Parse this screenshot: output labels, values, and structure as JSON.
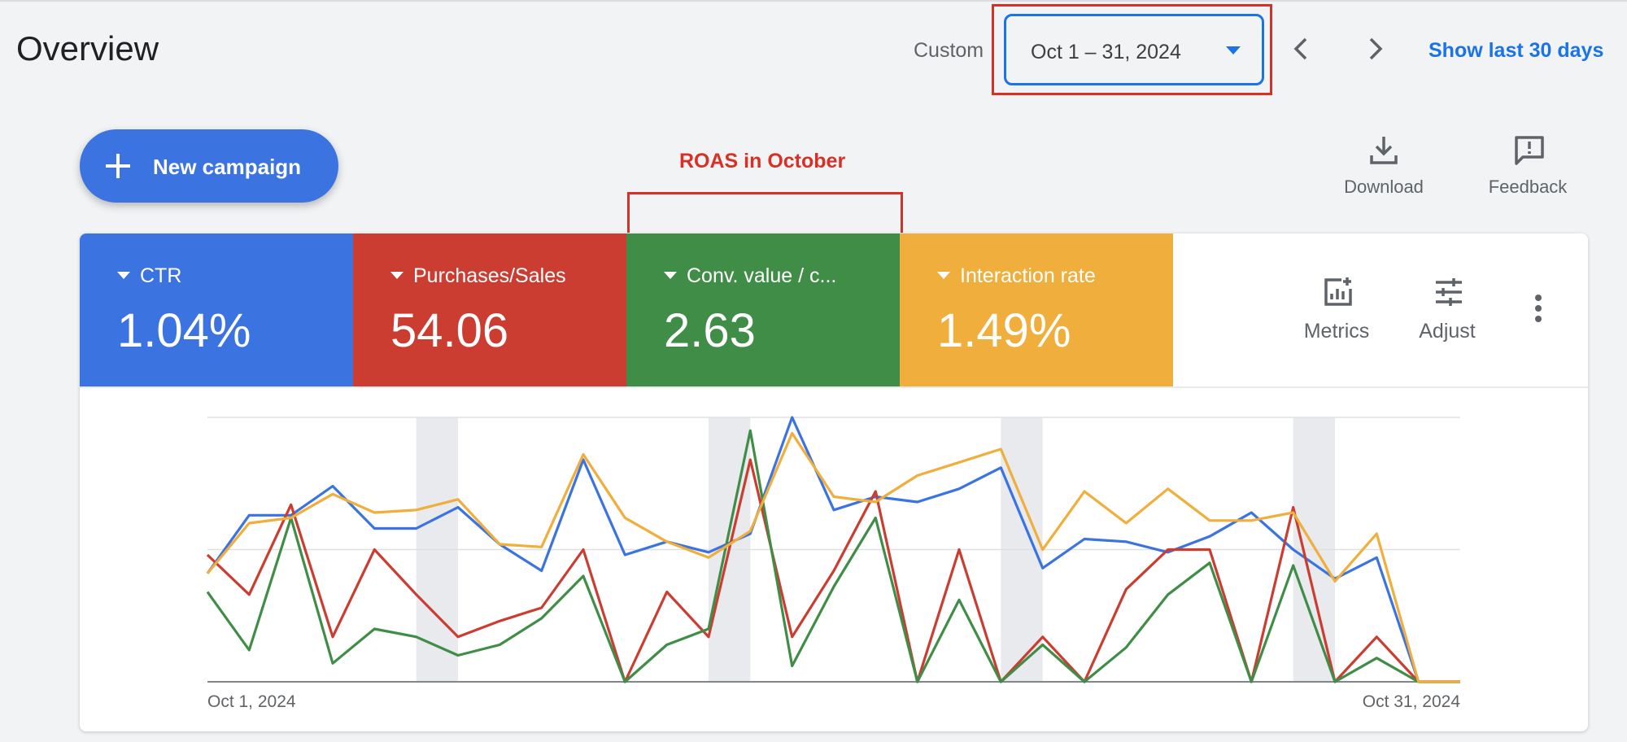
{
  "header": {
    "title": "Overview",
    "range_label": "Custom",
    "date_range": "Oct 1 – 31, 2024",
    "show_last_label": "Show last 30 days"
  },
  "toolbar": {
    "new_campaign_label": "New campaign",
    "download_label": "Download",
    "feedback_label": "Feedback"
  },
  "annotation": {
    "text": "ROAS in October",
    "color": "#d93025"
  },
  "metrics": [
    {
      "label": "CTR",
      "value": "1.04%",
      "color": "#3b73e1"
    },
    {
      "label": "Purchases/Sales",
      "value": "54.06",
      "color": "#cb3d31"
    },
    {
      "label": "Conv. value / c...",
      "value": "2.63",
      "color": "#408d47"
    },
    {
      "label": "Interaction rate",
      "value": "1.49%",
      "color": "#f0ae3c"
    }
  ],
  "card_tools": {
    "metrics_label": "Metrics",
    "adjust_label": "Adjust"
  },
  "chart_data": {
    "type": "line",
    "x_start_label": "Oct 1, 2024",
    "x_end_label": "Oct 31, 2024",
    "ylim": [
      0,
      100
    ],
    "grid": true,
    "weekend_bands": [
      [
        5,
        6
      ],
      [
        12,
        13
      ],
      [
        19,
        20
      ],
      [
        26,
        27
      ]
    ],
    "series": [
      {
        "name": "CTR",
        "color": "#3b73e1",
        "values": [
          41,
          63,
          63,
          74,
          58,
          58,
          66,
          52,
          42,
          84,
          48,
          53,
          49,
          56,
          100,
          65,
          70,
          68,
          73,
          81,
          43,
          54,
          53,
          49,
          55,
          64,
          50,
          39,
          47,
          0,
          0
        ]
      },
      {
        "name": "Purchases/Sales",
        "color": "#cb3d31",
        "values": [
          48,
          33,
          67,
          17,
          50,
          33,
          17,
          23,
          28,
          50,
          0,
          34,
          17,
          84,
          17,
          42,
          72,
          0,
          50,
          0,
          17,
          0,
          35,
          50,
          50,
          0,
          66,
          0,
          17,
          0,
          0
        ]
      },
      {
        "name": "Conv. value / conv.",
        "color": "#408d47",
        "values": [
          34,
          12,
          62,
          7,
          20,
          17,
          10,
          14,
          24,
          40,
          0,
          14,
          20,
          95,
          6,
          36,
          62,
          0,
          31,
          0,
          14,
          0,
          13,
          33,
          45,
          0,
          44,
          0,
          9,
          0,
          0
        ]
      },
      {
        "name": "Interaction rate",
        "color": "#f0ae3c",
        "values": [
          41,
          60,
          62,
          71,
          64,
          65,
          69,
          52,
          51,
          86,
          62,
          53,
          47,
          57,
          94,
          70,
          68,
          78,
          83,
          88,
          50,
          72,
          60,
          73,
          61,
          61,
          64,
          38,
          56,
          0,
          0
        ]
      }
    ]
  }
}
